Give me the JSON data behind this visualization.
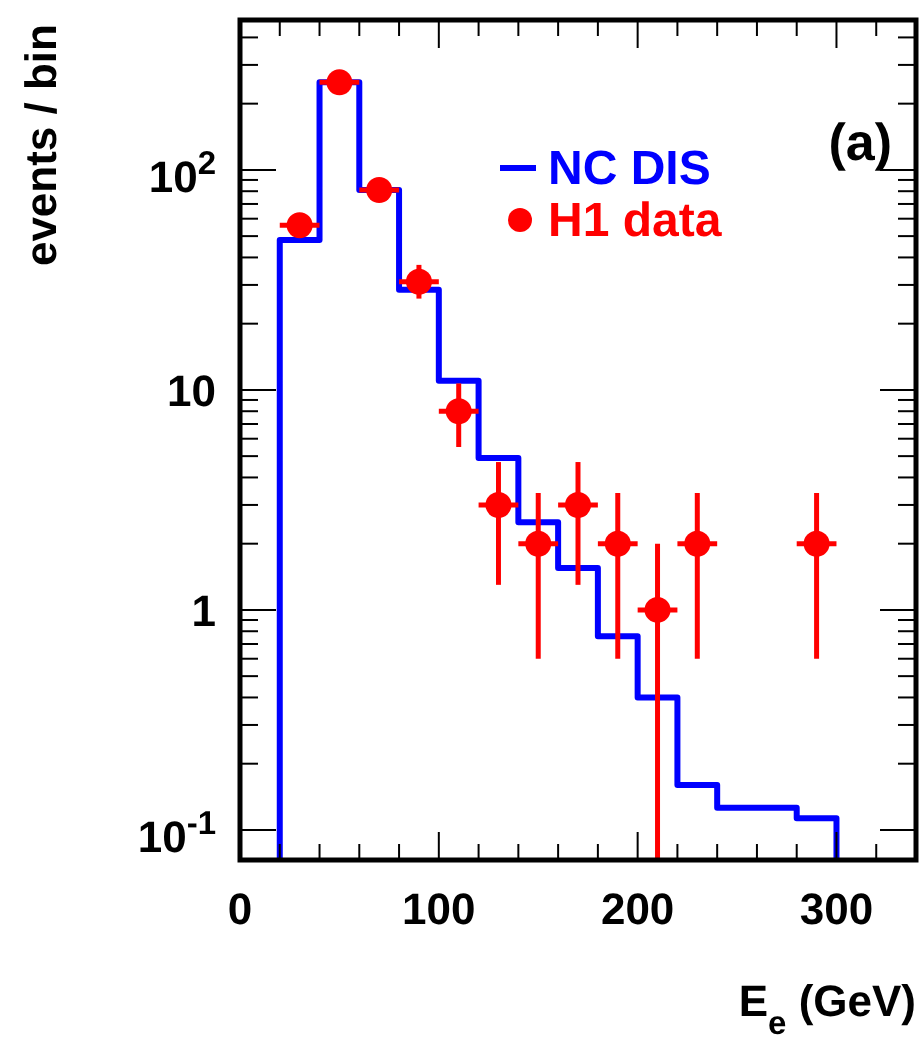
{
  "chart_data": {
    "type": "histogram",
    "xlabel": "E$_{e}$ (GeV)",
    "ylabel": "events / bin",
    "annotations": [
      "(a)"
    ],
    "log": "y",
    "grid": false,
    "legend": "top right",
    "marker": "circle",
    "xlim": [
      0,
      340
    ],
    "ylim": [
      0.073,
      480
    ],
    "xticks": [
      0,
      {
        "value": 20,
        "label": null
      },
      {
        "value": 40,
        "label": null
      },
      {
        "value": 60,
        "label": null
      },
      {
        "value": 80,
        "label": null
      },
      100,
      {
        "value": 120,
        "label": null
      },
      {
        "value": 140,
        "label": null
      },
      {
        "value": 160,
        "label": null
      },
      {
        "value": 180,
        "label": null
      },
      200,
      {
        "value": 220,
        "label": null
      },
      {
        "value": 240,
        "label": null
      },
      {
        "value": 260,
        "label": null
      },
      {
        "value": 280,
        "label": null
      },
      300,
      {
        "value": 320,
        "label": null
      }
    ],
    "yticks": [
      {
        "value": 0.1,
        "label": "10$^{-1}$"
      },
      {
        "value": 0.2,
        "label": null
      },
      {
        "value": 0.3,
        "label": null
      },
      {
        "value": 0.4,
        "label": null
      },
      {
        "value": 0.5,
        "label": null
      },
      {
        "value": 0.6,
        "label": null
      },
      {
        "value": 0.7,
        "label": null
      },
      {
        "value": 0.8,
        "label": null
      },
      {
        "value": 0.9,
        "label": null
      },
      1,
      {
        "value": 2,
        "label": null
      },
      {
        "value": 3,
        "label": null
      },
      {
        "value": 4,
        "label": null
      },
      {
        "value": 5,
        "label": null
      },
      {
        "value": 6,
        "label": null
      },
      {
        "value": 7,
        "label": null
      },
      {
        "value": 8,
        "label": null
      },
      {
        "value": 9,
        "label": null
      },
      10,
      {
        "value": 20,
        "label": null
      },
      {
        "value": 30,
        "label": null
      },
      {
        "value": 40,
        "label": null
      },
      {
        "value": 50,
        "label": null
      },
      {
        "value": 60,
        "label": null
      },
      {
        "value": 70,
        "label": null
      },
      {
        "value": 80,
        "label": null
      },
      {
        "value": 90,
        "label": null
      },
      {
        "value": 100,
        "label": "10$^{2}$"
      },
      {
        "value": 200,
        "label": null
      },
      {
        "value": 300,
        "label": null
      },
      {
        "value": 400,
        "label": null
      }
    ],
    "series": [
      {
        "name": "NC DIS",
        "color": "#0000ff",
        "bins": [
          20,
          40,
          60,
          80,
          100,
          120,
          140,
          160,
          180,
          200,
          220,
          240,
          260,
          280,
          300
        ],
        "values": [
          48,
          250,
          81,
          28.5,
          11,
          4.9,
          2.5,
          1.55,
          0.76,
          0.4,
          0.16,
          0.126,
          0.126,
          0.113
        ]
      },
      {
        "type": "scatter",
        "name": "H1 data",
        "color": "#ff0000",
        "x": [
          30,
          50,
          70,
          90,
          110,
          130,
          150,
          170,
          190,
          210,
          230,
          290
        ],
        "values": [
          56,
          250,
          81,
          31,
          8,
          3,
          2,
          3,
          2,
          1,
          2,
          2
        ],
        "errors": [
          null,
          null,
          null,
          [
            26,
            37
          ],
          [
            5.5,
            10.7
          ],
          [
            1.3,
            4.7
          ],
          [
            0.6,
            3.4
          ],
          [
            1.3,
            4.7
          ],
          [
            0.6,
            3.4
          ],
          [
            0.073,
            2
          ],
          [
            0.6,
            3.4
          ],
          [
            0.6,
            3.4
          ]
        ],
        "xerrors": [
          10,
          10,
          10,
          10,
          10,
          10,
          10,
          10,
          10,
          10,
          10,
          10
        ]
      }
    ]
  }
}
